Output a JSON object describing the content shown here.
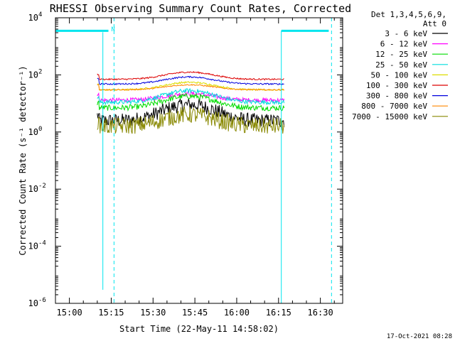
{
  "chart_data": {
    "type": "line",
    "title": "RHESSI Observing Summary Count Rates, Corrected",
    "xlabel": "Start Time (22-May-11 14:58:02)",
    "ylabel": "Corrected Count Rate (s⁻¹ detector⁻¹)",
    "y_scale": "log",
    "ylim": [
      1e-06,
      10000.0
    ],
    "xlim": [
      "14:55",
      "16:38"
    ],
    "x_ticks": [
      "15:00",
      "15:15",
      "15:30",
      "15:45",
      "16:00",
      "16:15",
      "16:30"
    ],
    "y_ticks": [
      {
        "value": 1e-06,
        "label": "10",
        "exp": "-6"
      },
      {
        "value": 0.0001,
        "label": "10",
        "exp": "-4"
      },
      {
        "value": 0.01,
        "label": "10",
        "exp": "-2"
      },
      {
        "value": 1,
        "label": "10",
        "exp": "0"
      },
      {
        "value": 100,
        "label": "10",
        "exp": "2"
      },
      {
        "value": 10000,
        "label": "10",
        "exp": "4"
      }
    ],
    "legend_header": [
      "Det 1,3,4,5,6,9,",
      "Att 0"
    ],
    "legend_placement": "right",
    "series": [
      {
        "name": "3 - 6 keV",
        "color": "#000000",
        "base": 2.5,
        "peak": 9,
        "noise": 0.5
      },
      {
        "name": "6 - 12 keV",
        "color": "#ff00ff",
        "base": 13,
        "peak": 22,
        "noise": 0.15
      },
      {
        "name": "12 - 25 keV",
        "color": "#00dd00",
        "base": 7,
        "peak": 18,
        "noise": 0.2
      },
      {
        "name": "25 - 50 keV",
        "color": "#00dddd",
        "base": 11,
        "peak": 28,
        "noise": 0.15
      },
      {
        "name": "50 - 100 keV",
        "color": "#dddd00",
        "base": 30,
        "peak": 55,
        "noise": 0.06
      },
      {
        "name": "100 - 300 keV",
        "color": "#dd0000",
        "base": 70,
        "peak": 125,
        "noise": 0.05
      },
      {
        "name": "300 - 800 keV",
        "color": "#0000dd",
        "base": 48,
        "peak": 85,
        "noise": 0.05
      },
      {
        "name": "800 - 7000 keV",
        "color": "#ff8800",
        "base": 30,
        "peak": 45,
        "noise": 0.04
      },
      {
        "name": "7000 - 15000 keV",
        "color": "#888800",
        "base": 1.6,
        "peak": 4,
        "noise": 0.6
      }
    ],
    "data_range": [
      "15:10",
      "16:17"
    ],
    "peak_time": "15:43",
    "status_line": {
      "color": "#00e5ee",
      "segments": [
        {
          "x": [
            "14:55",
            "15:14"
          ],
          "y": 3500
        },
        {
          "x": [
            "16:16",
            "16:33"
          ],
          "y": 3500
        }
      ],
      "drop": {
        "x": "15:12",
        "y_min": 3e-06
      }
    },
    "dashed_markers": [
      "15:16",
      "16:34"
    ],
    "marker_label": {
      "text": "N",
      "x": "15:16"
    },
    "flag_line": {
      "x": "16:16"
    }
  },
  "footer": {
    "timestamp": "17-Oct-2021 08:28"
  }
}
